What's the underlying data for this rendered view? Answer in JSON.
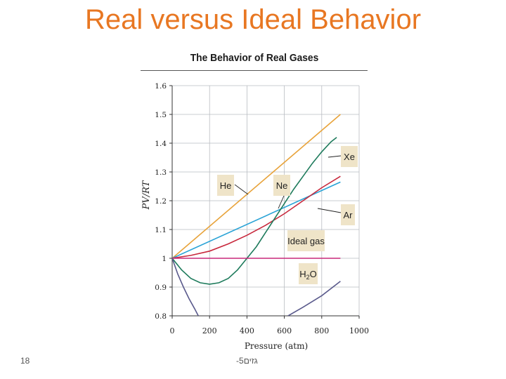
{
  "slide": {
    "title": "Real versus Ideal Behavior",
    "title_color": "#E87722",
    "page_number": "18",
    "footer_text": "-גזים5"
  },
  "chart_data": {
    "type": "line",
    "title": "The Behavior of Real Gases",
    "xlabel": "Pressure (atm)",
    "ylabel": "PV/RT",
    "xlim": [
      0,
      1000
    ],
    "ylim": [
      0.8,
      1.6
    ],
    "x_ticks": [
      "0",
      "200",
      "400",
      "600",
      "800",
      "1000"
    ],
    "y_ticks": [
      "0.8",
      "0.9",
      "1",
      "1.1",
      "1.2",
      "1.3",
      "1.4",
      "1.5",
      "1.6"
    ],
    "grid": true,
    "series": [
      {
        "name": "He",
        "color": "#E8A33A",
        "x": [
          0,
          900
        ],
        "y": [
          1.0,
          1.5
        ]
      },
      {
        "name": "Ne",
        "color": "#2AA3D6",
        "x": [
          0,
          900
        ],
        "y": [
          1.0,
          1.265
        ]
      },
      {
        "name": "Ar",
        "color": "#C8283C",
        "x": [
          0,
          100,
          200,
          300,
          400,
          500,
          600,
          700,
          800,
          900
        ],
        "y": [
          1.0,
          1.01,
          1.025,
          1.05,
          1.08,
          1.115,
          1.155,
          1.2,
          1.245,
          1.285
        ]
      },
      {
        "name": "Xe",
        "color": "#1E7B5C",
        "x": [
          0,
          50,
          100,
          150,
          200,
          250,
          300,
          350,
          400,
          450,
          500,
          550,
          600,
          650,
          700,
          750,
          800,
          850,
          880
        ],
        "y": [
          1.0,
          0.96,
          0.93,
          0.915,
          0.91,
          0.915,
          0.93,
          0.96,
          1.0,
          1.04,
          1.09,
          1.14,
          1.19,
          1.24,
          1.285,
          1.33,
          1.37,
          1.405,
          1.42
        ]
      },
      {
        "name": "Ideal gas",
        "color": "#C8287A",
        "x": [
          0,
          900
        ],
        "y": [
          1.0,
          1.0
        ]
      },
      {
        "name": "H2O",
        "color": "#5A5A8C",
        "x": [
          0,
          30,
          60,
          90,
          120,
          140
        ],
        "y": [
          1.0,
          0.945,
          0.9,
          0.86,
          0.825,
          0.8
        ]
      },
      {
        "name": "H2O",
        "color": "#5A5A8C",
        "x": [
          620,
          700,
          800,
          900
        ],
        "y": [
          0.8,
          0.83,
          0.87,
          0.92
        ]
      }
    ],
    "annotations": [
      {
        "text": "He",
        "sub": ""
      },
      {
        "text": "Ne",
        "sub": ""
      },
      {
        "text": "Xe",
        "sub": ""
      },
      {
        "text": "Ar",
        "sub": ""
      },
      {
        "text": "Ideal gas",
        "sub": ""
      },
      {
        "text": "H",
        "sub": "2",
        "after": "O"
      }
    ]
  }
}
